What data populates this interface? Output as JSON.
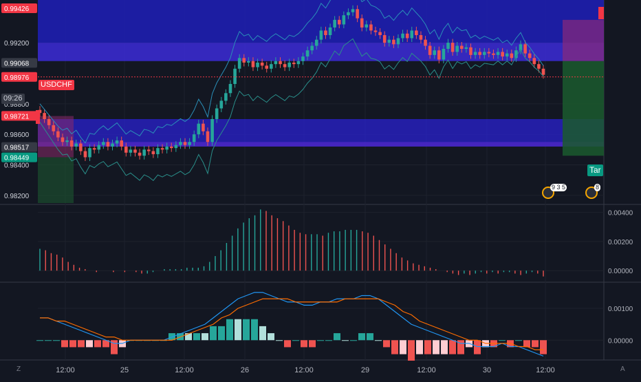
{
  "symbol": "USDCHF",
  "countdown": "09:26",
  "target_label": "Tar",
  "price_axis": [
    "0.99200",
    "0.98800",
    "0.98600",
    "0.98400",
    "0.98200"
  ],
  "price_tags": [
    {
      "text": "0.99426",
      "kind": "red",
      "price": 0.99426
    },
    {
      "text": "0.99068",
      "kind": "gray",
      "price": 0.99068
    },
    {
      "text": "0.98976",
      "kind": "red",
      "price": 0.98976
    },
    {
      "text": "0.98721",
      "kind": "red",
      "price": 0.98721
    },
    {
      "text": "0.98517",
      "kind": "gray",
      "price": 0.98517
    },
    {
      "text": "0.98449",
      "kind": "green",
      "price": 0.98449
    }
  ],
  "osc_axis": [
    "0.00400",
    "0.00200",
    "0.00000"
  ],
  "macd_axis": [
    "0.00100",
    "0.00000"
  ],
  "x_axis": [
    "12:00",
    "25",
    "12:00",
    "26",
    "12:00",
    "29",
    "12:00",
    "30",
    "12:00"
  ],
  "events": [
    {
      "badge": "9 3 5"
    },
    {
      "badge": "8"
    }
  ],
  "corner_left": "Z",
  "corner_right": "A",
  "colors": {
    "up": "#26a69a",
    "down": "#ef5350",
    "band": "#2a2fd4",
    "macd": "#2196f3",
    "signal": "#ff6d00"
  },
  "chart_data": {
    "type": "candlestick",
    "instrument": "USDCHF",
    "ylim": [
      0.9815,
      0.9948
    ],
    "x_labels": [
      "12:00",
      "25",
      "12:00",
      "26",
      "12:00",
      "29",
      "12:00",
      "30",
      "12:00"
    ],
    "close": [
      0.9874,
      0.987,
      0.9866,
      0.9862,
      0.9858,
      0.9855,
      0.9856,
      0.9852,
      0.9854,
      0.9849,
      0.9845,
      0.9851,
      0.985,
      0.9853,
      0.9855,
      0.9852,
      0.9854,
      0.9856,
      0.9852,
      0.9848,
      0.985,
      0.9848,
      0.9846,
      0.985,
      0.9849,
      0.9847,
      0.9851,
      0.985,
      0.9852,
      0.9851,
      0.9853,
      0.9855,
      0.9853,
      0.9855,
      0.986,
      0.9867,
      0.9862,
      0.9855,
      0.987,
      0.9877,
      0.9882,
      0.9887,
      0.9893,
      0.9903,
      0.991,
      0.9907,
      0.9908,
      0.9904,
      0.9907,
      0.9905,
      0.9903,
      0.9906,
      0.9908,
      0.9906,
      0.9904,
      0.9907,
      0.9906,
      0.9908,
      0.9911,
      0.9915,
      0.9918,
      0.9922,
      0.9928,
      0.9925,
      0.993,
      0.9935,
      0.9932,
      0.9938,
      0.994,
      0.9942,
      0.9936,
      0.993,
      0.9932,
      0.9928,
      0.9927,
      0.9925,
      0.992,
      0.9922,
      0.9919,
      0.9923,
      0.9926,
      0.9923,
      0.9928,
      0.9925,
      0.9922,
      0.9918,
      0.9912,
      0.9915,
      0.9909,
      0.9916,
      0.992,
      0.9914,
      0.9918,
      0.9916,
      0.9917,
      0.9912,
      0.9914,
      0.9912,
      0.9914,
      0.9913,
      0.9912,
      0.9914,
      0.9911,
      0.9913,
      0.991,
      0.9915,
      0.9919,
      0.9913,
      0.991,
      0.9906,
      0.9903,
      0.9899
    ],
    "bands": {
      "upper_start": 0.9872,
      "upper_end": 0.9922,
      "lower_start": 0.986,
      "lower_end": 0.9898
    },
    "zones": [
      {
        "from": 0.9908,
        "to": 0.9942,
        "kind": "resistance"
      },
      {
        "from": 0.9852,
        "to": 0.987,
        "kind": "support"
      }
    ],
    "osc_series": [
      0.0015,
      0.0014,
      0.0012,
      0.0011,
      0.0009,
      0.0006,
      0.0004,
      0.0002,
      0.0001,
      0.0,
      -0.0001,
      0.0,
      0.0,
      -0.0001,
      0.0,
      -0.0001,
      0.0,
      -0.0001,
      -0.0002,
      -0.0002,
      -0.0001,
      0.0,
      0.0001,
      0.0001,
      0.0001,
      0.0001,
      0.0002,
      0.0002,
      0.0002,
      0.0003,
      0.0006,
      0.001,
      0.0014,
      0.0019,
      0.0024,
      0.0029,
      0.0033,
      0.0036,
      0.0038,
      0.0042,
      0.0041,
      0.0038,
      0.0036,
      0.0034,
      0.0031,
      0.0028,
      0.0026,
      0.0025,
      0.0025,
      0.0025,
      0.0024,
      0.0026,
      0.0027,
      0.0027,
      0.0028,
      0.0028,
      0.0028,
      0.0027,
      0.0026,
      0.0024,
      0.0021,
      0.0018,
      0.0015,
      0.0012,
      0.0009,
      0.0007,
      0.0005,
      0.0004,
      0.0003,
      0.0002,
      0.0001,
      0.0,
      -0.0001,
      -0.0002,
      -0.0003,
      -0.0002,
      -0.0003,
      -0.0002,
      -0.0001,
      -0.0002,
      -0.0001,
      -0.0002,
      -0.0001,
      -0.0001,
      -0.0002,
      -0.0003,
      -0.0002,
      -0.0001,
      -0.0002,
      -0.0004
    ],
    "macd": [
      0.0007,
      0.0007,
      0.0006,
      0.0005,
      0.0004,
      0.0003,
      0.0002,
      0.0001,
      0.0,
      -0.0001,
      -0.0001,
      0.0,
      0.0,
      0.0,
      0.0,
      0.0,
      0.0001,
      0.0002,
      0.0003,
      0.0004,
      0.0005,
      0.0007,
      0.0009,
      0.0011,
      0.0013,
      0.0014,
      0.0015,
      0.0015,
      0.0014,
      0.0013,
      0.0012,
      0.0012,
      0.0011,
      0.0011,
      0.0012,
      0.0012,
      0.0013,
      0.0013,
      0.0013,
      0.0014,
      0.0014,
      0.0013,
      0.0011,
      0.0009,
      0.0007,
      0.0005,
      0.0004,
      0.0003,
      0.0002,
      0.0001,
      0.0,
      -0.0001,
      -0.0001,
      -0.0002,
      -0.0002,
      -0.0002,
      -0.0001,
      -0.0002,
      -0.0002,
      -0.0003,
      -0.0004,
      -0.0005
    ],
    "signal": [
      0.0007,
      0.0007,
      0.0006,
      0.0006,
      0.0005,
      0.0004,
      0.0003,
      0.0002,
      0.0001,
      0.0001,
      0.0,
      0.0,
      0.0,
      0.0,
      0.0,
      0.0,
      0.0,
      0.0001,
      0.0002,
      0.0003,
      0.0004,
      0.0005,
      0.0007,
      0.0008,
      0.001,
      0.0011,
      0.0012,
      0.0013,
      0.0013,
      0.0013,
      0.0013,
      0.0012,
      0.0012,
      0.0012,
      0.0012,
      0.0012,
      0.0012,
      0.0013,
      0.0013,
      0.0013,
      0.0013,
      0.0013,
      0.0012,
      0.0011,
      0.0009,
      0.0008,
      0.0006,
      0.0005,
      0.0004,
      0.0003,
      0.0002,
      0.0001,
      0.0,
      0.0,
      -0.0001,
      -0.0001,
      -0.0001,
      -0.0001,
      -0.0002,
      -0.0002,
      -0.0003,
      -0.0003
    ]
  }
}
